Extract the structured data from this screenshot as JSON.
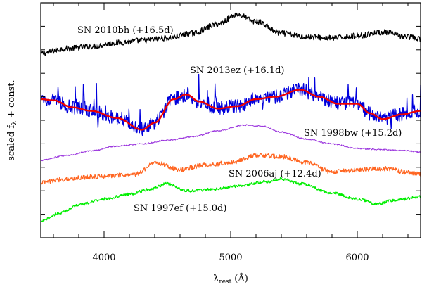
{
  "chart_data": {
    "type": "line",
    "title": "",
    "xlabel": "λ",
    "xlabel_sub": "rest",
    "xlabel_unit": "(Å)",
    "ylabel": "scaled f",
    "ylabel_sub": "λ",
    "ylabel_suffix": " + const.",
    "xlim": [
      3500,
      6500
    ],
    "ylim": [
      0,
      10
    ],
    "x_ticks": [
      4000,
      5000,
      6000
    ],
    "x_tick_labels": [
      "4000",
      "5000",
      "6000"
    ],
    "grid": false,
    "legend": "none",
    "series": [
      {
        "name": "SN 2010bh",
        "label": "SN 2010bh (+16.5d)",
        "color": "#000000",
        "noise": 0.12,
        "x": [
          3500,
          3700,
          3900,
          4100,
          4300,
          4500,
          4700,
          4900,
          5050,
          5200,
          5400,
          5600,
          5800,
          6000,
          6200,
          6400,
          6500
        ],
        "y": [
          7.85,
          8.05,
          8.15,
          8.3,
          8.4,
          8.5,
          8.7,
          9.1,
          9.5,
          9.2,
          8.7,
          8.55,
          8.5,
          8.6,
          8.75,
          8.55,
          8.45
        ]
      },
      {
        "name": "SN 2013ez",
        "label": "SN 2013ez (+16.1d)",
        "color": "#0000dd",
        "noise": 0.3,
        "x": [
          3500,
          3600,
          3750,
          3900,
          4100,
          4300,
          4400,
          4550,
          4650,
          4750,
          4900,
          5050,
          5200,
          5350,
          5550,
          5700,
          5850,
          6000,
          6100,
          6200,
          6350,
          6500
        ],
        "y": [
          5.9,
          5.85,
          5.55,
          5.4,
          5.1,
          4.6,
          4.9,
          5.9,
          6.1,
          5.8,
          5.5,
          5.6,
          5.9,
          6.0,
          6.3,
          6.0,
          5.7,
          5.7,
          5.3,
          5.05,
          5.25,
          5.4
        ]
      },
      {
        "name": "SN 2013ez smoothed",
        "label": "",
        "color": "#ee0000",
        "noise": 0,
        "x": [
          3500,
          3600,
          3750,
          3900,
          4100,
          4300,
          4400,
          4550,
          4650,
          4750,
          4900,
          5050,
          5200,
          5350,
          5550,
          5700,
          5850,
          6000,
          6100,
          6200,
          6350,
          6500
        ],
        "y": [
          5.9,
          5.85,
          5.55,
          5.4,
          5.1,
          4.6,
          4.9,
          5.9,
          6.1,
          5.8,
          5.5,
          5.6,
          5.9,
          6.0,
          6.3,
          6.0,
          5.7,
          5.7,
          5.3,
          5.05,
          5.25,
          5.4
        ]
      },
      {
        "name": "SN 1998bw",
        "label": "SN 1998bw (+15.2d)",
        "color": "#9932dd",
        "noise": 0.03,
        "x": [
          3500,
          3700,
          3900,
          4100,
          4300,
          4500,
          4700,
          4900,
          5100,
          5250,
          5400,
          5600,
          5800,
          6000,
          6200,
          6400,
          6500
        ],
        "y": [
          3.3,
          3.5,
          3.7,
          3.9,
          4.0,
          4.15,
          4.3,
          4.55,
          4.8,
          4.75,
          4.5,
          4.2,
          4.0,
          3.8,
          3.75,
          3.7,
          3.65
        ]
      },
      {
        "name": "SN 2006aj",
        "label": "SN 2006aj (+12.4d)",
        "color": "#ff6622",
        "noise": 0.1,
        "x": [
          3500,
          3700,
          3900,
          4100,
          4250,
          4400,
          4600,
          4800,
          5000,
          5200,
          5400,
          5600,
          5800,
          6000,
          6200,
          6400,
          6500
        ],
        "y": [
          2.35,
          2.5,
          2.6,
          2.65,
          2.7,
          3.2,
          2.9,
          3.1,
          3.2,
          3.5,
          3.45,
          3.2,
          2.8,
          2.9,
          2.95,
          2.8,
          2.7
        ]
      },
      {
        "name": "SN 1997ef",
        "label": "SN 1997ef (+15.0d)",
        "color": "#00ee00",
        "noise": 0.06,
        "x": [
          3500,
          3650,
          3800,
          4000,
          4200,
          4350,
          4500,
          4650,
          4850,
          5050,
          5300,
          5400,
          5550,
          5800,
          6000,
          6150,
          6300,
          6500
        ],
        "y": [
          0.7,
          1.05,
          1.4,
          1.65,
          1.85,
          2.05,
          2.3,
          2.0,
          2.05,
          2.2,
          2.4,
          2.5,
          2.3,
          1.9,
          1.65,
          1.45,
          1.6,
          1.75
        ]
      }
    ]
  }
}
